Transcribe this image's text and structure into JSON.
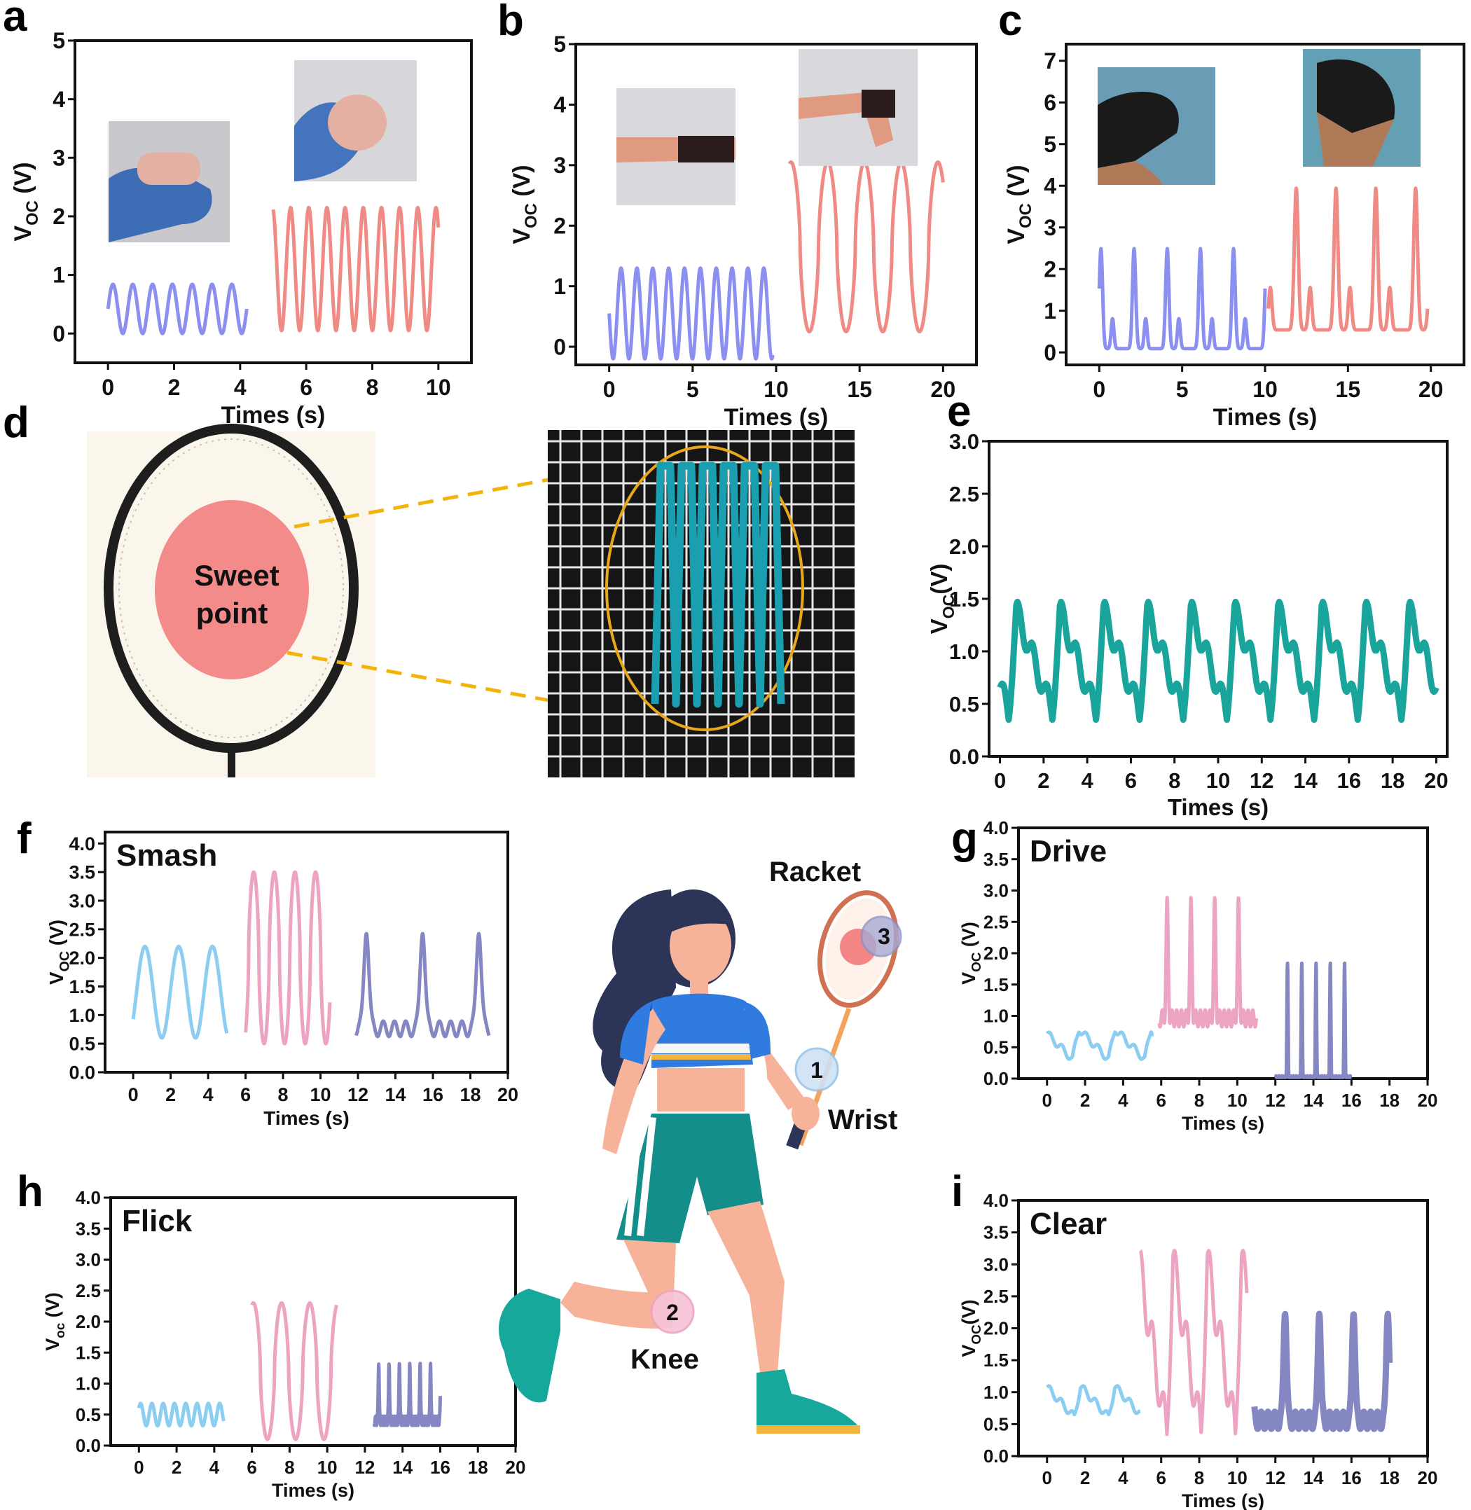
{
  "colors": {
    "blue": "#8a8ff0",
    "red": "#f08a84",
    "teal": "#1aa59c",
    "lightblue": "#8ccdf2",
    "pink": "#eda4c2",
    "purple": "#8587c2",
    "gold": "#f2b30a",
    "sweet": "#f48b8b"
  },
  "icons": [
    "finger-bend-photo",
    "wrist-bend-photo",
    "knee-bend-photo",
    "racket-photo",
    "racket-sensor-photo",
    "badminton-player-illustration"
  ],
  "panel_d": {
    "label": "d",
    "sweet_line1": "Sweet",
    "sweet_line2": "point"
  },
  "illustration": {
    "racket_label": "Racket",
    "wrist_label": "Wrist",
    "knee_label": "Knee",
    "marker1": "1",
    "marker2": "2",
    "marker3": "3"
  },
  "chart_data": [
    {
      "panel": "a",
      "type": "line",
      "xlabel": "Times (s)",
      "ylabel_main": "V",
      "ylabel_sub": "OC",
      "ylabel_unit": " (V)",
      "xlim": [
        -1,
        11
      ],
      "ylim": [
        -0.5,
        5
      ],
      "xticks": [
        0,
        2,
        4,
        6,
        8,
        10
      ],
      "yticks": [
        0,
        1,
        2,
        3,
        4,
        5
      ],
      "series": [
        {
          "color": "blue",
          "x_start": 0,
          "x_end": 4.2,
          "base": 0.42,
          "amp": 0.42,
          "period": 0.6,
          "phase": 0,
          "shape": "sine"
        },
        {
          "color": "red",
          "x_start": 5.0,
          "x_end": 10.0,
          "base": 1.1,
          "amp": 1.05,
          "period": 0.55,
          "phase": 1.2,
          "shape": "sine"
        }
      ]
    },
    {
      "panel": "b",
      "type": "line",
      "xlabel": "Times (s)",
      "ylabel_main": "V",
      "ylabel_sub": "OC",
      "ylabel_unit": " (V)",
      "xlim": [
        -2,
        22
      ],
      "ylim": [
        -0.3,
        5
      ],
      "xticks": [
        0,
        5,
        10,
        15,
        20
      ],
      "yticks": [
        0,
        1,
        2,
        3,
        4,
        5
      ],
      "series": [
        {
          "color": "blue",
          "x_start": 0,
          "x_end": 9.8,
          "base": 0.55,
          "amp": 0.75,
          "period": 0.95,
          "phase": 0.5,
          "shape": "sine"
        },
        {
          "color": "red",
          "x_start": 10.8,
          "x_end": 20.0,
          "base": 1.65,
          "amp": 1.4,
          "period": 2.2,
          "phase": 0.3,
          "shape": "sharp"
        }
      ]
    },
    {
      "panel": "c",
      "type": "line",
      "xlabel": "Times (s)",
      "ylabel_main": "V",
      "ylabel_sub": "OC",
      "ylabel_unit": " (V)",
      "xlim": [
        -2,
        22
      ],
      "ylim": [
        -0.3,
        7.4
      ],
      "xticks": [
        0,
        5,
        10,
        15,
        20
      ],
      "yticks": [
        0,
        1,
        2,
        3,
        4,
        5,
        6,
        7
      ],
      "series": [
        {
          "color": "blue",
          "x_start": 0,
          "x_end": 10.0,
          "base": 1.05,
          "amp": 1.2,
          "period": 2.0,
          "phase": 0.2,
          "shape": "double"
        },
        {
          "color": "red",
          "x_start": 10.2,
          "x_end": 19.8,
          "base": 1.9,
          "amp": 1.7,
          "period": 2.4,
          "phase": 0.3,
          "shape": "double"
        }
      ]
    },
    {
      "panel": "e",
      "type": "line",
      "xlabel": "Times (s)",
      "ylabel_main": "V",
      "ylabel_sub": "OC",
      "ylabel_unit": "(V)",
      "xlim": [
        -0.5,
        20.5
      ],
      "ylim": [
        0,
        3.0
      ],
      "xticks": [
        0,
        2,
        4,
        6,
        8,
        10,
        12,
        14,
        16,
        18,
        20
      ],
      "yticks": [
        "0.0",
        "0.5",
        "1.0",
        "1.5",
        "2.0",
        "2.5",
        "3.0"
      ],
      "series": [
        {
          "color": "teal",
          "x_start": 0,
          "x_end": 20,
          "base": 0.9,
          "amp": 0.6,
          "period": 2.0,
          "phase": 0.8,
          "shape": "saw",
          "thick": true
        }
      ]
    },
    {
      "panel": "f",
      "title": "Smash",
      "type": "line",
      "xlabel": "Times (s)",
      "ylabel_main": "V",
      "ylabel_sub": "OC",
      "ylabel_unit": " (V)",
      "xlim": [
        -1.5,
        20
      ],
      "ylim": [
        0,
        4.2
      ],
      "xticks": [
        0,
        2,
        4,
        6,
        8,
        10,
        12,
        14,
        16,
        18,
        20
      ],
      "yticks": [
        "0.0",
        "0.5",
        "1.0",
        "1.5",
        "2.0",
        "2.5",
        "3.0",
        "3.5",
        "4.0"
      ],
      "series": [
        {
          "color": "lightblue",
          "x_start": 0,
          "x_end": 5.0,
          "base": 1.4,
          "amp": 0.8,
          "period": 1.8,
          "phase": 0.9,
          "shape": "sine"
        },
        {
          "color": "pink",
          "x_start": 6.0,
          "x_end": 10.5,
          "base": 2.0,
          "amp": 1.5,
          "period": 1.1,
          "phase": 0.4,
          "shape": "sharp"
        },
        {
          "color": "purple",
          "x_start": 11.9,
          "x_end": 19.0,
          "base": 1.3,
          "amp": 0.9,
          "period": 3.0,
          "phase": 0.1,
          "shape": "spiky"
        }
      ]
    },
    {
      "panel": "g",
      "title": "Drive",
      "type": "line",
      "xlabel": "Times (s)",
      "ylabel_main": "V",
      "ylabel_sub": "OC",
      "ylabel_unit": " (V)",
      "xlim": [
        -1.5,
        20
      ],
      "ylim": [
        0,
        4.0
      ],
      "xticks": [
        0,
        2,
        4,
        6,
        8,
        10,
        12,
        14,
        16,
        18,
        20
      ],
      "yticks": [
        "0.0",
        "0.5",
        "1.0",
        "1.5",
        "2.0",
        "2.5",
        "3.0",
        "3.5",
        "4.0"
      ],
      "series": [
        {
          "color": "lightblue",
          "x_start": 0,
          "x_end": 5.6,
          "base": 0.55,
          "amp": 0.3,
          "period": 1.9,
          "phase": 0.3,
          "shape": "saw"
        },
        {
          "color": "pink",
          "x_start": 5.9,
          "x_end": 11.0,
          "base": 1.5,
          "amp": 0.9,
          "period": 1.25,
          "phase": 0.2,
          "shape": "spiky"
        },
        {
          "color": "purple",
          "x_start": 12.0,
          "x_end": 16.0,
          "base": 0.45,
          "amp": 0.9,
          "period": 0.75,
          "phase": 0.4,
          "shape": "spiky"
        }
      ]
    },
    {
      "panel": "h",
      "title": "Flick",
      "type": "line",
      "xlabel": "Times (s)",
      "ylabel_main": "V",
      "ylabel_sub": "oc",
      "ylabel_unit": " (V)",
      "xlim": [
        -1.5,
        20
      ],
      "ylim": [
        0,
        4.0
      ],
      "xticks": [
        0,
        2,
        4,
        6,
        8,
        10,
        12,
        14,
        16,
        18,
        20
      ],
      "yticks": [
        "0.0",
        "0.5",
        "1.0",
        "1.5",
        "2.0",
        "2.5",
        "3.0",
        "3.5",
        "4.0"
      ],
      "series": [
        {
          "color": "lightblue",
          "x_start": 0,
          "x_end": 4.5,
          "base": 0.5,
          "amp": 0.18,
          "period": 0.6,
          "phase": 0.1,
          "shape": "sine"
        },
        {
          "color": "pink",
          "x_start": 6.0,
          "x_end": 10.5,
          "base": 1.2,
          "amp": 1.1,
          "period": 1.5,
          "phase": 0.2,
          "shape": "sharp"
        },
        {
          "color": "purple",
          "x_start": 12.5,
          "x_end": 16.0,
          "base": 0.7,
          "amp": 0.5,
          "period": 0.55,
          "phase": 0.1,
          "shape": "spiky"
        }
      ]
    },
    {
      "panel": "i",
      "title": "Clear",
      "type": "line",
      "xlabel": "Times (s)",
      "ylabel_main": "V",
      "ylabel_sub": "OC",
      "ylabel_unit": "(V)",
      "xlim": [
        -1.5,
        20
      ],
      "ylim": [
        0,
        4.0
      ],
      "xticks": [
        0,
        2,
        4,
        6,
        8,
        10,
        12,
        14,
        16,
        18,
        20
      ],
      "yticks": [
        "0.0",
        "0.5",
        "1.0",
        "1.5",
        "2.0",
        "2.5",
        "3.0",
        "3.5",
        "4.0"
      ],
      "series": [
        {
          "color": "lightblue",
          "x_start": 0,
          "x_end": 4.9,
          "base": 0.85,
          "amp": 0.3,
          "period": 1.8,
          "phase": 0.2,
          "shape": "saw"
        },
        {
          "color": "pink",
          "x_start": 4.9,
          "x_end": 10.5,
          "base": 1.7,
          "amp": 1.7,
          "period": 1.8,
          "phase": 0.5,
          "shape": "saw"
        },
        {
          "color": "purple",
          "x_start": 10.9,
          "x_end": 18.0,
          "base": 1.1,
          "amp": 0.9,
          "period": 1.8,
          "phase": 0.3,
          "shape": "spiky",
          "thick": true
        }
      ]
    }
  ]
}
